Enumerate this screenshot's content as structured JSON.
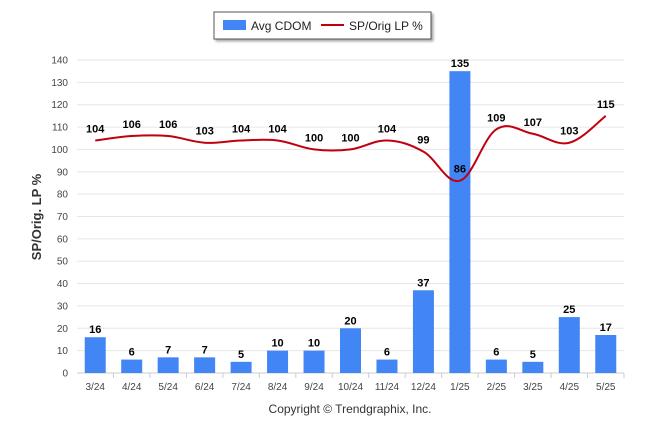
{
  "chart_data": {
    "type": "bar",
    "categories": [
      "3/24",
      "4/24",
      "5/24",
      "6/24",
      "7/24",
      "8/24",
      "9/24",
      "10/24",
      "11/24",
      "12/24",
      "1/25",
      "2/25",
      "3/25",
      "4/25",
      "5/25"
    ],
    "series": [
      {
        "name": "Avg CDOM",
        "type": "bar",
        "color": "#4285f4",
        "values": [
          16,
          6,
          7,
          7,
          5,
          10,
          10,
          20,
          6,
          37,
          135,
          6,
          5,
          25,
          17
        ]
      },
      {
        "name": "SP/Orig LP %",
        "type": "line",
        "color": "#c0000c",
        "values": [
          104,
          106,
          106,
          103,
          104,
          104,
          100,
          100,
          104,
          99,
          86,
          109,
          107,
          103,
          115
        ]
      }
    ],
    "ylabel": "SP/Orig. LP %",
    "xlabel": "",
    "ylim": [
      0,
      140
    ],
    "yticks": [
      0,
      10,
      20,
      30,
      40,
      50,
      60,
      70,
      80,
      90,
      100,
      110,
      120,
      130,
      140
    ],
    "grid": true,
    "legend_position": "top-center"
  },
  "credit": "Copyright © Trendgraphix, Inc."
}
